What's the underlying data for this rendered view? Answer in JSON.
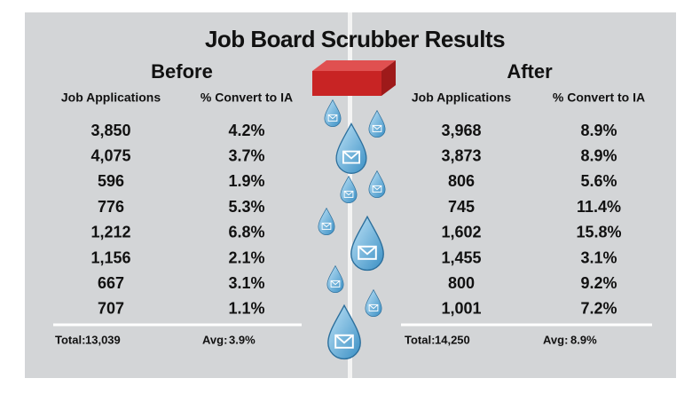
{
  "title": "Job Board Scrubber Results",
  "before": {
    "heading": "Before",
    "columns": [
      "Job Applications",
      "% Convert to IA"
    ],
    "rows": [
      [
        "3,850",
        "4.2%"
      ],
      [
        "4,075",
        "3.7%"
      ],
      [
        "596",
        "1.9%"
      ],
      [
        "776",
        "5.3%"
      ],
      [
        "1,212",
        "6.8%"
      ],
      [
        "1,156",
        "2.1%"
      ],
      [
        "667",
        "3.1%"
      ],
      [
        "707",
        "1.1%"
      ]
    ],
    "total_label": "Total:",
    "total": "13,039",
    "avg_label": "Avg:",
    "avg": "3.9%"
  },
  "after": {
    "heading": "After",
    "columns": [
      "Job Applications",
      "% Convert to IA"
    ],
    "rows": [
      [
        "3,968",
        "8.9%"
      ],
      [
        "3,873",
        "8.9%"
      ],
      [
        "806",
        "5.6%"
      ],
      [
        "745",
        "11.4%"
      ],
      [
        "1,602",
        "15.8%"
      ],
      [
        "1,455",
        "3.1%"
      ],
      [
        "800",
        "9.2%"
      ],
      [
        "1,001",
        "7.2%"
      ]
    ],
    "total_label": "Total:",
    "total": "14,250",
    "avg_label": "Avg:",
    "avg": "8.9%"
  }
}
